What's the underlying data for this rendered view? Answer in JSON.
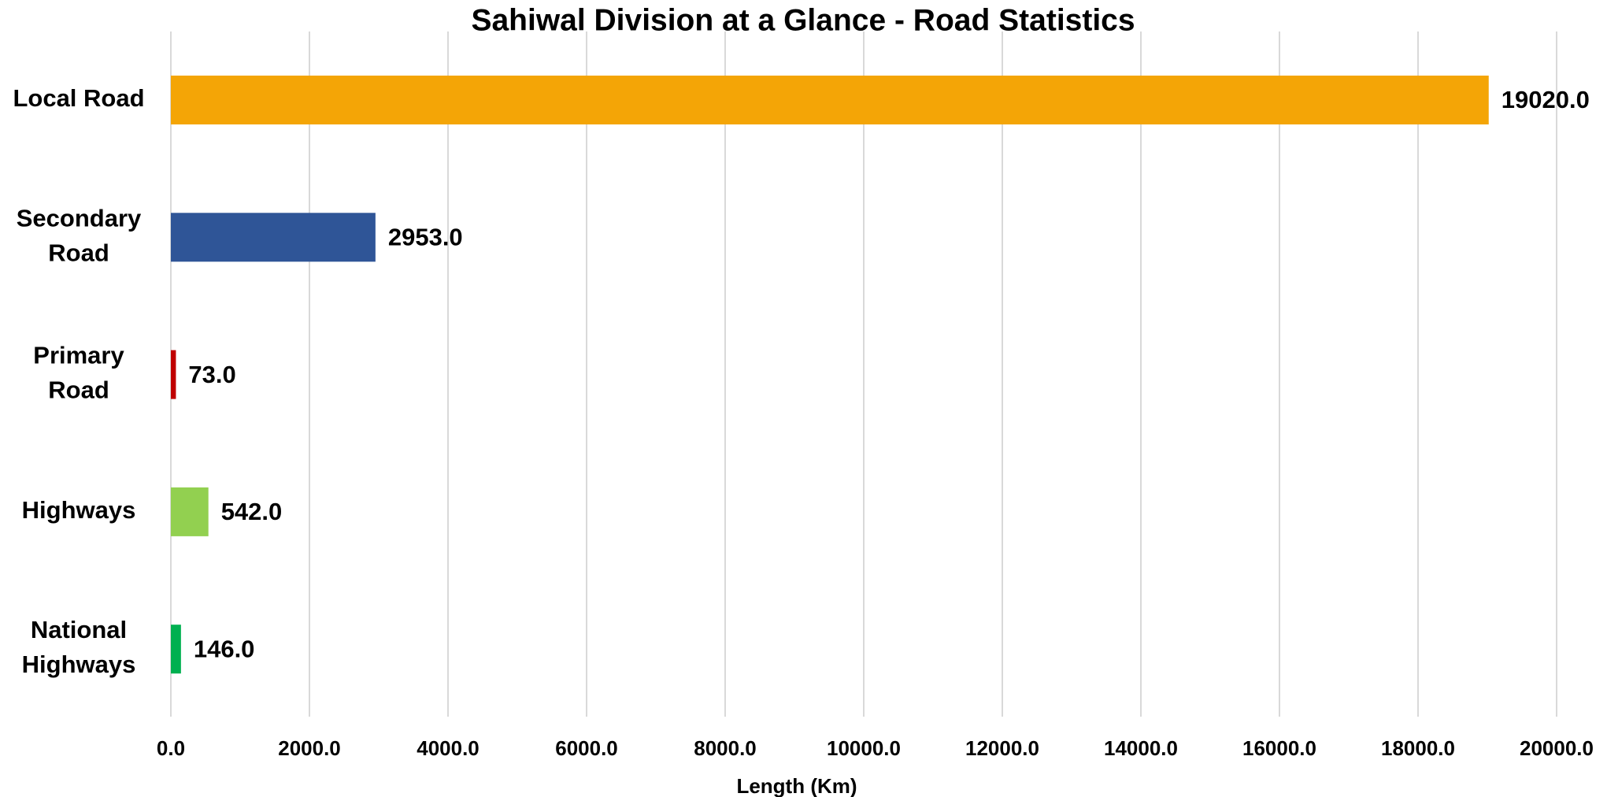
{
  "chart_data": {
    "type": "barh",
    "title": "Sahiwal Division at a Glance - Road Statistics",
    "xlabel": "Length (Km)",
    "categories": [
      "Local Road",
      "Secondary Road",
      "Primary Road",
      "Highways",
      "National Highways"
    ],
    "values": [
      19020,
      2953,
      73,
      542,
      146
    ],
    "value_labels": [
      "19020.0",
      "2953.0",
      "73.0",
      "542.0",
      "146.0"
    ],
    "colors": [
      "#f4a506",
      "#2f5597",
      "#c00000",
      "#92d050",
      "#00b050"
    ],
    "xlim": [
      0,
      20000
    ],
    "xticks": [
      {
        "value": 0,
        "label": "0.0"
      },
      {
        "value": 2000,
        "label": "2000.0"
      },
      {
        "value": 4000,
        "label": "4000.0"
      },
      {
        "value": 6000,
        "label": "6000.0"
      },
      {
        "value": 8000,
        "label": "8000.0"
      },
      {
        "value": 10000,
        "label": "10000.0"
      },
      {
        "value": 12000,
        "label": "12000.0"
      },
      {
        "value": 14000,
        "label": "14000.0"
      },
      {
        "value": 16000,
        "label": "16000.0"
      },
      {
        "value": 18000,
        "label": "18000.0"
      },
      {
        "value": 20000,
        "label": "20000.0"
      }
    ],
    "grid": true
  }
}
